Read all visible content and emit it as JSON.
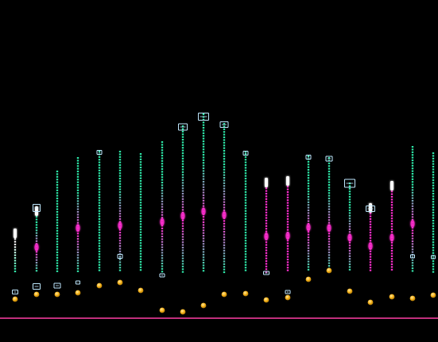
{
  "colors": {
    "background": "#000000",
    "cyan_segment": "#2ee8a8",
    "magenta_segment": "#ff2fd0",
    "white_segment": "#ffffff",
    "bracket_marker": "#bfe9ff",
    "gold_dot": "#f6b21a",
    "baseline": "#ff3fa6"
  },
  "icons": {
    "bracket_marker": "bracket-marker-icon",
    "gold_dot": "gold-orb-icon"
  }
}
